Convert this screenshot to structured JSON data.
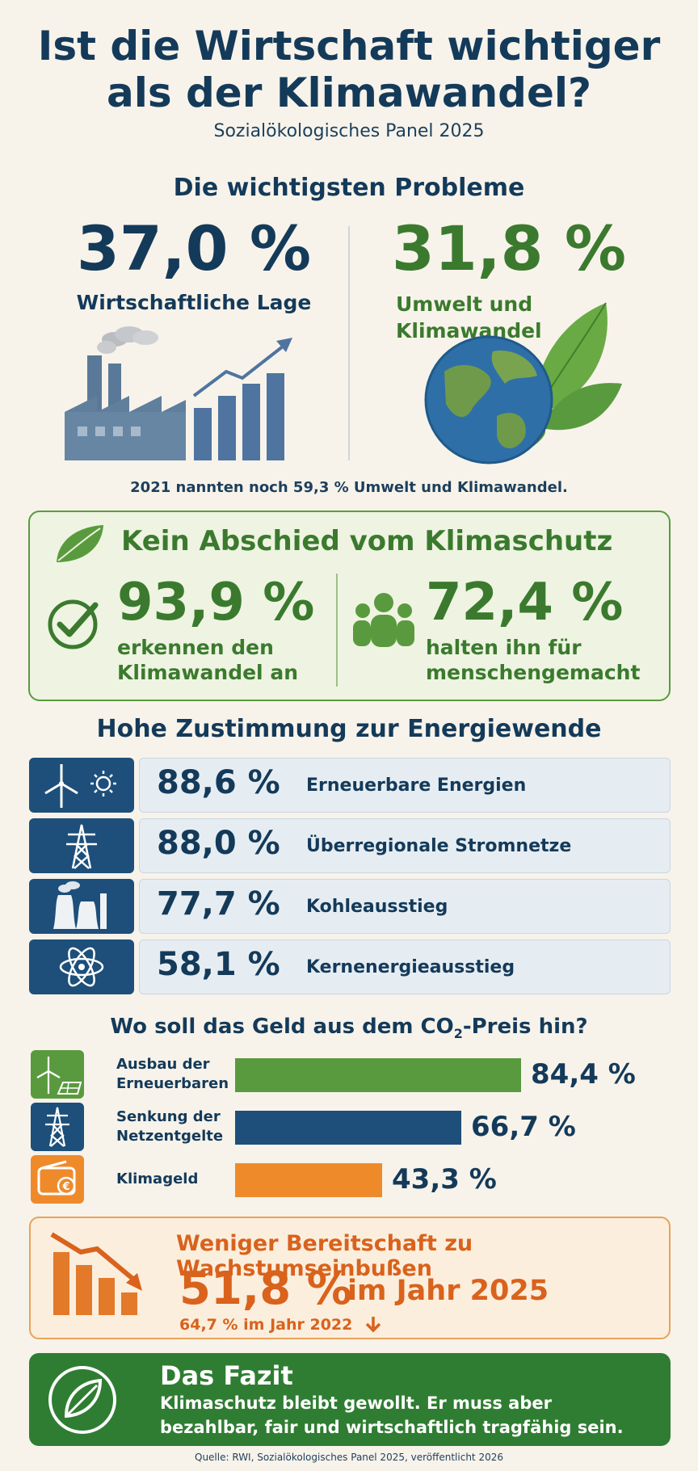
{
  "header": {
    "title_line1": "Ist die Wirtschaft wichtiger",
    "title_line2": "als der Klimawandel?",
    "subtitle": "Sozialökologisches Panel 2025"
  },
  "problems": {
    "heading": "Die wichtigsten Probleme",
    "economy": {
      "pct": "37,0 %",
      "label": "Wirtschaftliche Lage",
      "icon": "factory-growth-icon"
    },
    "climate": {
      "pct": "31,8 %",
      "label_line1": "Umwelt und",
      "label_line2": "Klimawandel",
      "icon": "earth-leaf-icon"
    },
    "note": "2021 nannten noch 59,3 % Umwelt und Klimawandel."
  },
  "climate_protection": {
    "heading": "Kein Abschied vom Klimaschutz",
    "recognize": {
      "pct": "93,9 %",
      "line1": "erkennen den",
      "line2": "Klimawandel an",
      "icon": "check-circle-icon"
    },
    "manmade": {
      "pct": "72,4 %",
      "line1": "halten ihn für",
      "line2": "menschengemacht",
      "icon": "people-icon"
    }
  },
  "energy": {
    "heading": "Hohe Zustimmung zur Energiewende",
    "rows": [
      {
        "pct": "88,6 %",
        "label": "Erneuerbare Energien",
        "icon": "wind-sun-icon"
      },
      {
        "pct": "88,0 %",
        "label": "Überregionale Stromnetze",
        "icon": "power-pylon-icon"
      },
      {
        "pct": "77,7 %",
        "label": "Kohleausstieg",
        "icon": "coal-plant-icon"
      },
      {
        "pct": "58,1 %",
        "label": "Kernenergieausstieg",
        "icon": "atom-icon"
      }
    ]
  },
  "co2": {
    "heading_pre": "Wo soll das Geld aus dem CO",
    "heading_sub": "2",
    "heading_post": "-Preis hin?",
    "rows": [
      {
        "line1": "Ausbau der",
        "line2": "Erneuerbaren",
        "value": 84.4,
        "pct": "84,4 %",
        "color": "#5a9a3e",
        "icon": "wind-solar-icon"
      },
      {
        "line1": "Senkung der",
        "line2": "Netzentgelte",
        "value": 66.7,
        "pct": "66,7 %",
        "color": "#1d4f7a",
        "icon": "power-pylon-icon"
      },
      {
        "line1": "Klimageld",
        "line2": "",
        "value": 43.3,
        "pct": "43,3 %",
        "color": "#ef8a2b",
        "icon": "wallet-euro-icon"
      }
    ]
  },
  "growth": {
    "heading": "Weniger Bereitschaft zu Wachstumseinbußen",
    "pct": "51,8 %",
    "year": "im Jahr 2025",
    "previous": "64,7 % im Jahr 2022",
    "icon": "declining-bars-icon"
  },
  "conclusion": {
    "heading": "Das Fazit",
    "line1": "Klimaschutz bleibt gewollt. Er muss aber",
    "line2": "bezahlbar, fair und wirtschaftlich tragfähig sein.",
    "icon": "leaf-circle-icon"
  },
  "source": "Quelle: RWI, Sozialökologisches Panel 2025, veröffentlicht 2026"
}
